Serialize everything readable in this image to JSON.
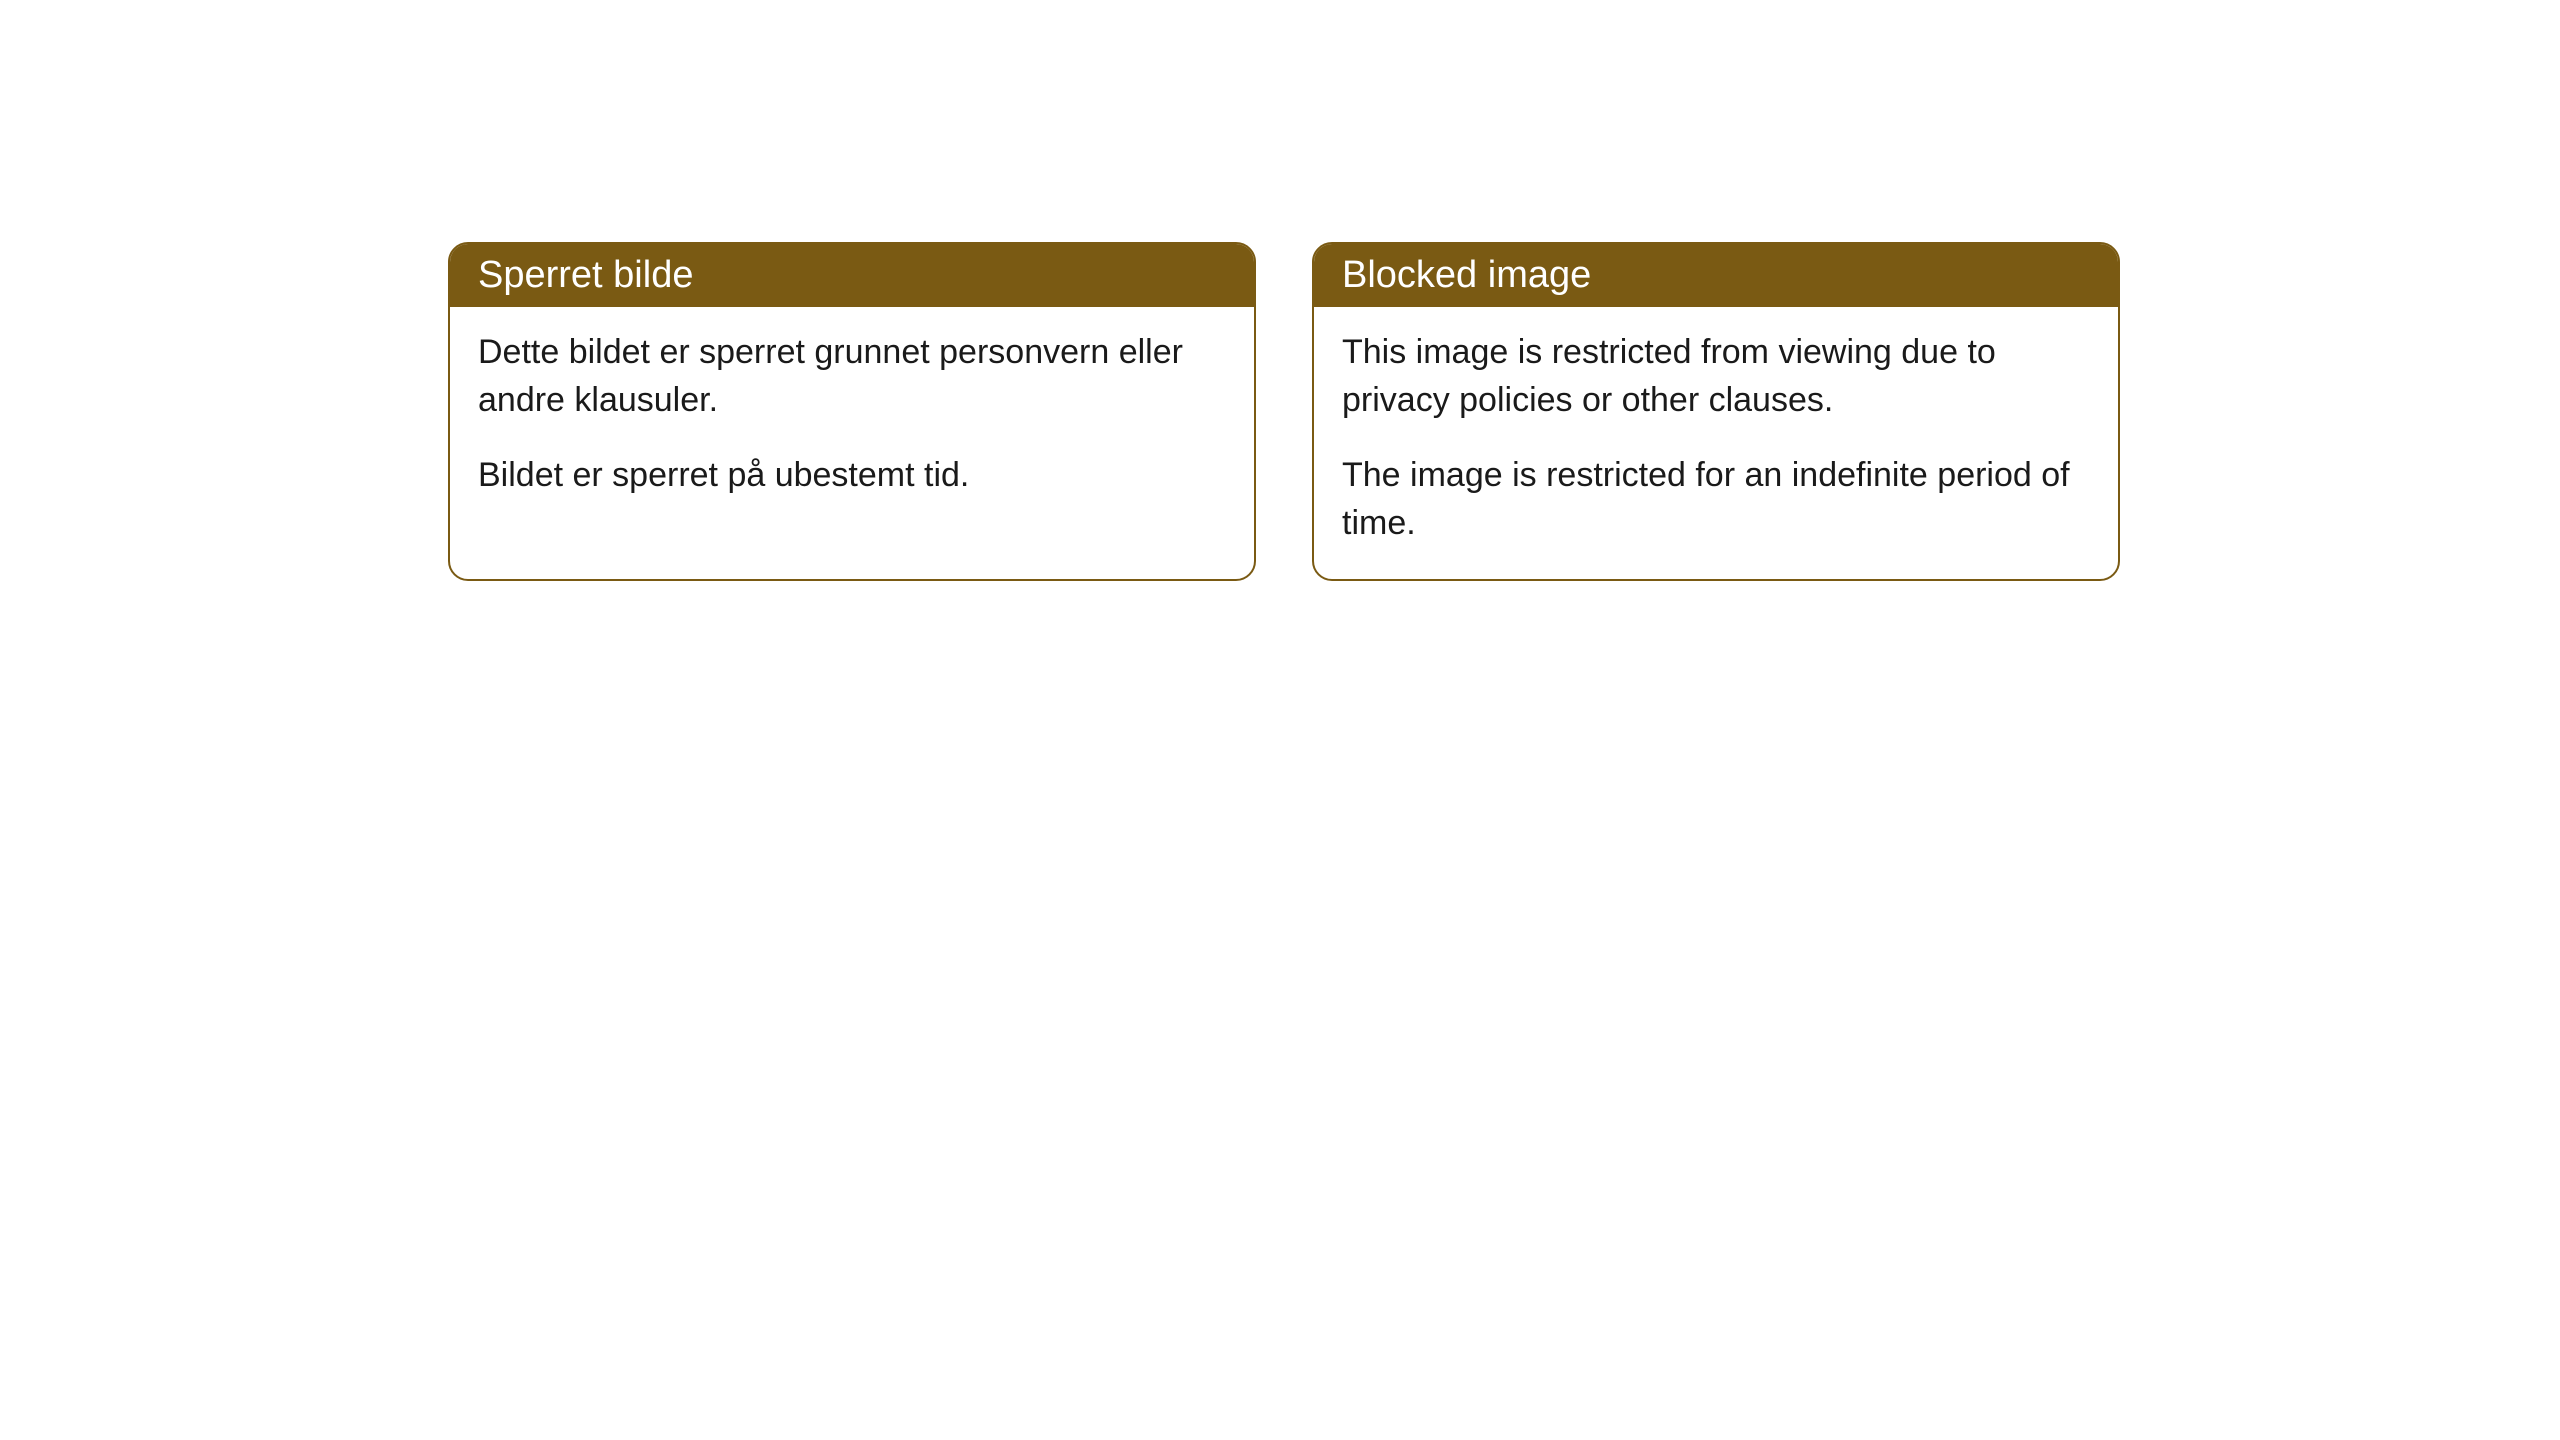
{
  "cards": [
    {
      "title": "Sperret bilde",
      "paragraph1": "Dette bildet er sperret grunnet personvern eller andre klausuler.",
      "paragraph2": "Bildet er sperret på ubestemt tid."
    },
    {
      "title": "Blocked image",
      "paragraph1": "This image is restricted from viewing due to privacy policies or other clauses.",
      "paragraph2": "The image is restricted for an indefinite period of time."
    }
  ],
  "styling": {
    "header_bg_color": "#7a5a13",
    "header_text_color": "#ffffff",
    "border_color": "#7a5a13",
    "body_bg_color": "#ffffff",
    "body_text_color": "#1a1a1a",
    "border_radius": "20px",
    "header_fontsize": 38,
    "body_fontsize": 34
  }
}
